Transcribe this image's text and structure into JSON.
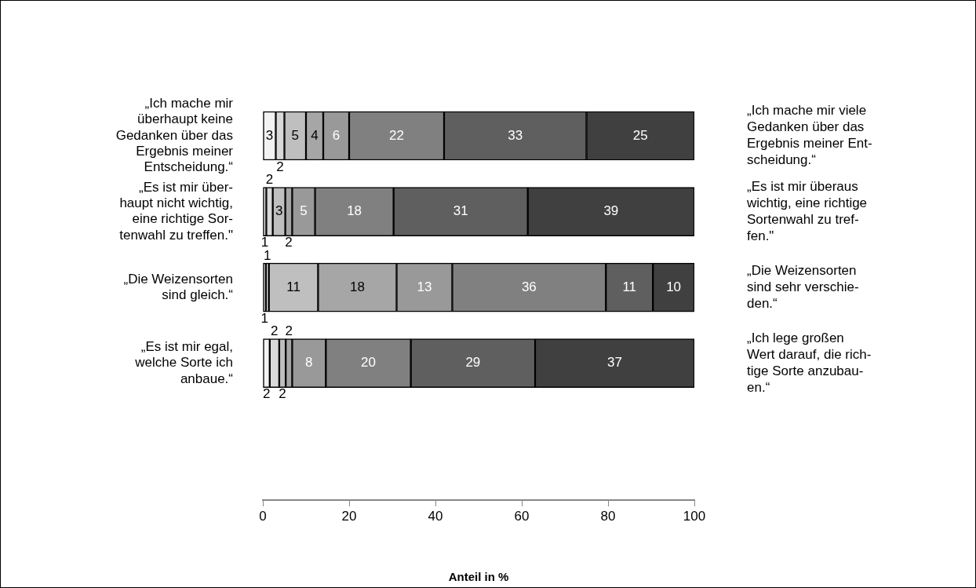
{
  "chart_data": {
    "type": "bar",
    "orientation": "horizontal",
    "stacked": true,
    "xlabel": "Anteil in %",
    "categories": [
      "„Ich mache mir\nüberhaupt keine\nGedanken über das\nErgebnis meiner\nEntscheidung.“",
      "„Es ist mir über-\nhaupt nicht wichtig,\neine richtige Sor-\ntenwahl zu treffen.\"",
      "„Die Weizensorten\nsind gleich.“",
      "„Es ist mir egal,\nwelche Sorte ich\nanbaue.“"
    ],
    "series": [
      {
        "color": "#f2f2f2",
        "values": [
          3,
          0.8,
          0.7,
          1.6
        ],
        "value_labels": [
          "3",
          "1",
          "1",
          "2"
        ]
      },
      {
        "color": "#d9d9d9",
        "values": [
          2,
          1.5,
          0.7,
          2.2
        ],
        "value_labels": [
          "2",
          "2",
          "1",
          "2"
        ]
      },
      {
        "color": "#bfbfbf",
        "values": [
          5,
          2.9,
          11.4,
          1.5
        ],
        "value_labels": [
          "5",
          "3",
          "11",
          "2"
        ]
      },
      {
        "color": "#a6a6a6",
        "values": [
          4,
          1.6,
          18.2,
          1.5
        ],
        "value_labels": [
          "4",
          "2",
          "18",
          "2"
        ]
      },
      {
        "color": "#999999",
        "values": [
          6,
          5.3,
          12.9,
          7.8
        ],
        "value_labels": [
          "6",
          "5",
          "13",
          "8"
        ]
      },
      {
        "color": "#808080",
        "values": [
          22,
          18.2,
          35.6,
          19.7
        ],
        "value_labels": [
          "22",
          "18",
          "36",
          "20"
        ]
      },
      {
        "color": "#5f5f5f",
        "values": [
          33,
          31.1,
          10.9,
          28.8
        ],
        "value_labels": [
          "33",
          "31",
          "11",
          "29"
        ]
      },
      {
        "color": "#404040",
        "values": [
          25,
          38.6,
          9.6,
          36.9
        ],
        "value_labels": [
          "25",
          "39",
          "10",
          "37"
        ]
      }
    ],
    "xlim": [
      0,
      100
    ],
    "xticks": [
      0,
      20,
      40,
      60,
      80,
      100
    ],
    "grid": false,
    "legend": false,
    "annotations": [
      "„Ich mache mir viele\nGedanken über das\nErgebnis meiner Ent-\nscheidung.“",
      "„Es ist mir überaus\nwichtig, eine richtige\nSortenwahl zu tref-\nfen.\"",
      "„Die Weizensorten\nsind sehr verschie-\nden.“",
      "„Ich lege großen\nWert darauf, die rich-\ntige Sorte anzubau-\nen.“"
    ]
  }
}
